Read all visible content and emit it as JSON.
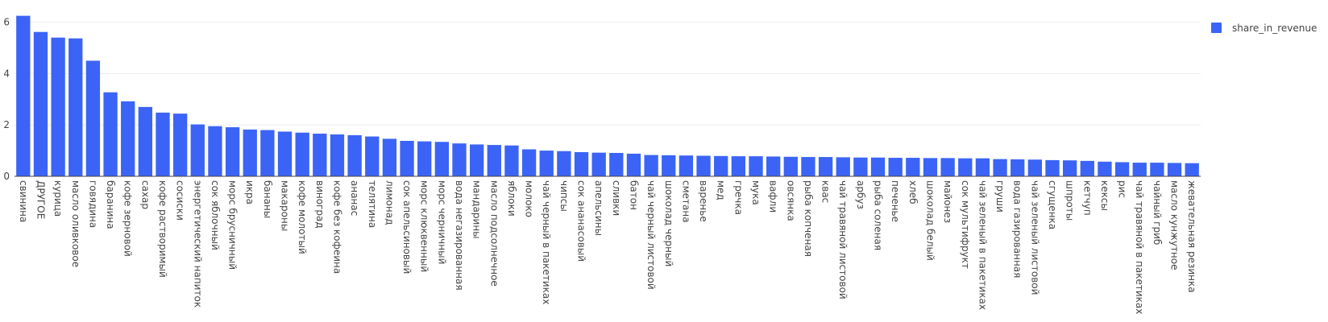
{
  "chart_data": {
    "type": "bar",
    "title": "",
    "xlabel": "",
    "ylabel": "",
    "ylim": [
      0,
      6.3
    ],
    "yticks": [
      0,
      2,
      4,
      6
    ],
    "grid": true,
    "legend_position": "top-right",
    "colors": {
      "bar": "#3b64f6",
      "grid": "#ececf3",
      "axis_text": "#444444"
    },
    "categories": [
      "свинина",
      "ДРУГОЕ",
      "курица",
      "масло оливковое",
      "говядина",
      "баранина",
      "кофе зерновой",
      "сахар",
      "кофе растворимый",
      "сосиски",
      "энергетический напиток",
      "сок яблочный",
      "морс брусничный",
      "икра",
      "бананы",
      "макароны",
      "кофе молотый",
      "виноград",
      "кофе без кофеина",
      "ананас",
      "телятина",
      "лимонад",
      "сок апельсиновый",
      "морс клюквенный",
      "морс черничный",
      "вода негазированная",
      "мандарины",
      "масло подсолнечное",
      "яблоки",
      "молоко",
      "чай черный в пакетиках",
      "чипсы",
      "сок ананасовый",
      "апельсины",
      "сливки",
      "батон",
      "чай черный листовой",
      "шоколад черный",
      "сметана",
      "варенье",
      "мед",
      "гречка",
      "мука",
      "вафли",
      "овсянка",
      "рыба копченая",
      "квас",
      "чай травяной листовой",
      "арбуз",
      "рыба соленая",
      "печенье",
      "хлеб",
      "шоколад белый",
      "майонез",
      "сок мультифрукт",
      "чай зеленый в пакетиках",
      "груши",
      "вода газированная",
      "чай зеленый листовой",
      "сгущенка",
      "шпроты",
      "кетчуп",
      "кексы",
      "рис",
      "чай травяной в пакетиках",
      "чайный гриб",
      "масло кунжутное",
      "жевательная резинка"
    ],
    "series": [
      {
        "name": "share_in_revenue",
        "values": [
          6.25,
          5.62,
          5.4,
          5.37,
          4.5,
          3.27,
          2.92,
          2.7,
          2.48,
          2.44,
          2.02,
          1.95,
          1.91,
          1.82,
          1.8,
          1.74,
          1.7,
          1.66,
          1.63,
          1.6,
          1.55,
          1.46,
          1.38,
          1.36,
          1.34,
          1.28,
          1.24,
          1.22,
          1.2,
          1.05,
          1.0,
          0.98,
          0.94,
          0.92,
          0.91,
          0.88,
          0.83,
          0.82,
          0.81,
          0.8,
          0.79,
          0.78,
          0.78,
          0.77,
          0.76,
          0.75,
          0.75,
          0.74,
          0.73,
          0.73,
          0.72,
          0.72,
          0.71,
          0.71,
          0.7,
          0.7,
          0.67,
          0.66,
          0.65,
          0.63,
          0.62,
          0.6,
          0.57,
          0.55,
          0.53,
          0.53,
          0.52,
          0.51
        ]
      }
    ]
  }
}
